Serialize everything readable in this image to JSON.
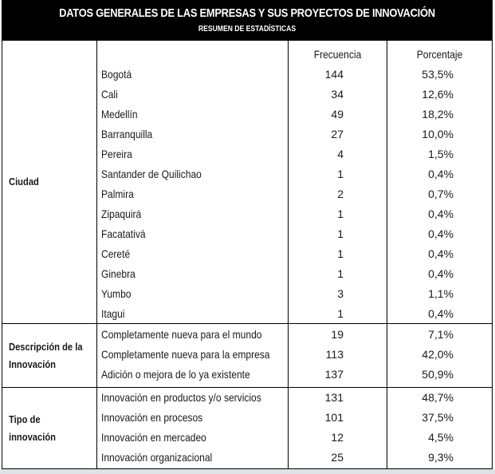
{
  "header": {
    "title": "DATOS GENERALES DE LAS EMPRESAS Y SUS PROYECTOS DE INNOVACIÓN",
    "subtitle": "RESUMEN DE ESTADÍSTICAS"
  },
  "columns": {
    "freq": "Frecuencia",
    "pct": "Porcentaje"
  },
  "groups": [
    {
      "label": "Ciudad",
      "rows": [
        {
          "item": "Bogotá",
          "freq": "144",
          "pct": "53,5%"
        },
        {
          "item": "Cali",
          "freq": "34",
          "pct": "12,6%"
        },
        {
          "item": "Medellín",
          "freq": "49",
          "pct": "18,2%"
        },
        {
          "item": "Barranquilla",
          "freq": "27",
          "pct": "10,0%"
        },
        {
          "item": "Pereira",
          "freq": "4",
          "pct": "1,5%"
        },
        {
          "item": "Santander de Quilichao",
          "freq": "1",
          "pct": "0,4%"
        },
        {
          "item": "Palmira",
          "freq": "2",
          "pct": "0,7%"
        },
        {
          "item": "Zipaquirá",
          "freq": "1",
          "pct": "0,4%"
        },
        {
          "item": "Facatativá",
          "freq": "1",
          "pct": "0,4%"
        },
        {
          "item": "Cereté",
          "freq": "1",
          "pct": "0,4%"
        },
        {
          "item": "Ginebra",
          "freq": "1",
          "pct": "0,4%"
        },
        {
          "item": "Yumbo",
          "freq": "3",
          "pct": "1,1%"
        },
        {
          "item": "Itagui",
          "freq": "1",
          "pct": "0,4%"
        }
      ]
    },
    {
      "label_line1": "Descripción de la",
      "label_line2": "Innovación",
      "rows": [
        {
          "item": "Completamente nueva para el mundo",
          "freq": "19",
          "pct": "7,1%"
        },
        {
          "item": "Completamente nueva para la empresa",
          "freq": "113",
          "pct": "42,0%"
        },
        {
          "item": "Adición o mejora de lo ya existente",
          "freq": "137",
          "pct": "50,9%"
        }
      ]
    },
    {
      "label_line1": "Tipo de",
      "label_line2": "innovación",
      "rows": [
        {
          "item": "Innovación en productos y/o servicios",
          "freq": "131",
          "pct": "48,7%"
        },
        {
          "item": "Innovación en procesos",
          "freq": "101",
          "pct": "37,5%"
        },
        {
          "item": "Innovación en mercadeo",
          "freq": "12",
          "pct": "4,5%"
        },
        {
          "item": "Innovación organizacional",
          "freq": "25",
          "pct": "9,3%"
        }
      ]
    }
  ]
}
